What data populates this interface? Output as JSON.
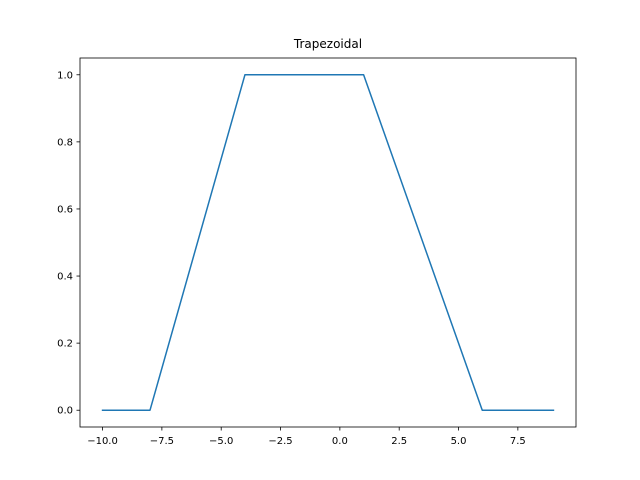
{
  "chart_data": {
    "type": "line",
    "title": "Trapezoidal",
    "xlabel": "",
    "ylabel": "",
    "xlim": [
      -10.95,
      9.95
    ],
    "ylim": [
      -0.05,
      1.05
    ],
    "grid": false,
    "x_ticks": [
      -10.0,
      -7.5,
      -5.0,
      -2.5,
      0.0,
      2.5,
      5.0,
      7.5
    ],
    "x_tick_labels": [
      "−10.0",
      "−7.5",
      "−5.0",
      "−2.5",
      "0.0",
      "2.5",
      "5.0",
      "7.5"
    ],
    "y_ticks": [
      0.0,
      0.2,
      0.4,
      0.6,
      0.8,
      1.0
    ],
    "y_tick_labels": [
      "0.0",
      "0.2",
      "0.4",
      "0.6",
      "0.8",
      "1.0"
    ],
    "series": [
      {
        "color": "#1f77b4",
        "x": [
          -10,
          -8,
          -4,
          1,
          6,
          9
        ],
        "y": [
          0,
          0,
          1,
          1,
          0,
          0
        ]
      }
    ]
  }
}
